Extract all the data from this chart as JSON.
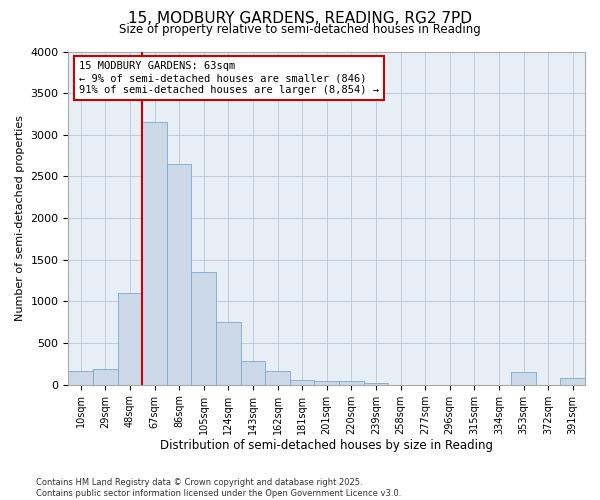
{
  "title": "15, MODBURY GARDENS, READING, RG2 7PD",
  "subtitle": "Size of property relative to semi-detached houses in Reading",
  "xlabel": "Distribution of semi-detached houses by size in Reading",
  "ylabel": "Number of semi-detached properties",
  "annotation_title": "15 MODBURY GARDENS: 63sqm",
  "annotation_line1": "← 9% of semi-detached houses are smaller (846)",
  "annotation_line2": "91% of semi-detached houses are larger (8,854) →",
  "footer_line1": "Contains HM Land Registry data © Crown copyright and database right 2025.",
  "footer_line2": "Contains public sector information licensed under the Open Government Licence v3.0.",
  "categories": [
    "10sqm",
    "29sqm",
    "48sqm",
    "67sqm",
    "86sqm",
    "105sqm",
    "124sqm",
    "143sqm",
    "162sqm",
    "181sqm",
    "201sqm",
    "220sqm",
    "239sqm",
    "258sqm",
    "277sqm",
    "296sqm",
    "315sqm",
    "334sqm",
    "353sqm",
    "372sqm",
    "391sqm"
  ],
  "values": [
    170,
    190,
    1100,
    3150,
    2650,
    1350,
    750,
    280,
    160,
    60,
    50,
    50,
    20,
    0,
    0,
    0,
    0,
    0,
    155,
    0,
    80
  ],
  "bar_color": "#ccd9e8",
  "bar_edge_color": "#7aaac8",
  "annotation_box_color": "#cc0000",
  "ylim": [
    0,
    4000
  ],
  "yticks": [
    0,
    500,
    1000,
    1500,
    2000,
    2500,
    3000,
    3500,
    4000
  ],
  "background_color": "#ffffff",
  "plot_bg_color": "#e8eef5",
  "grid_color": "#b8c8d8"
}
